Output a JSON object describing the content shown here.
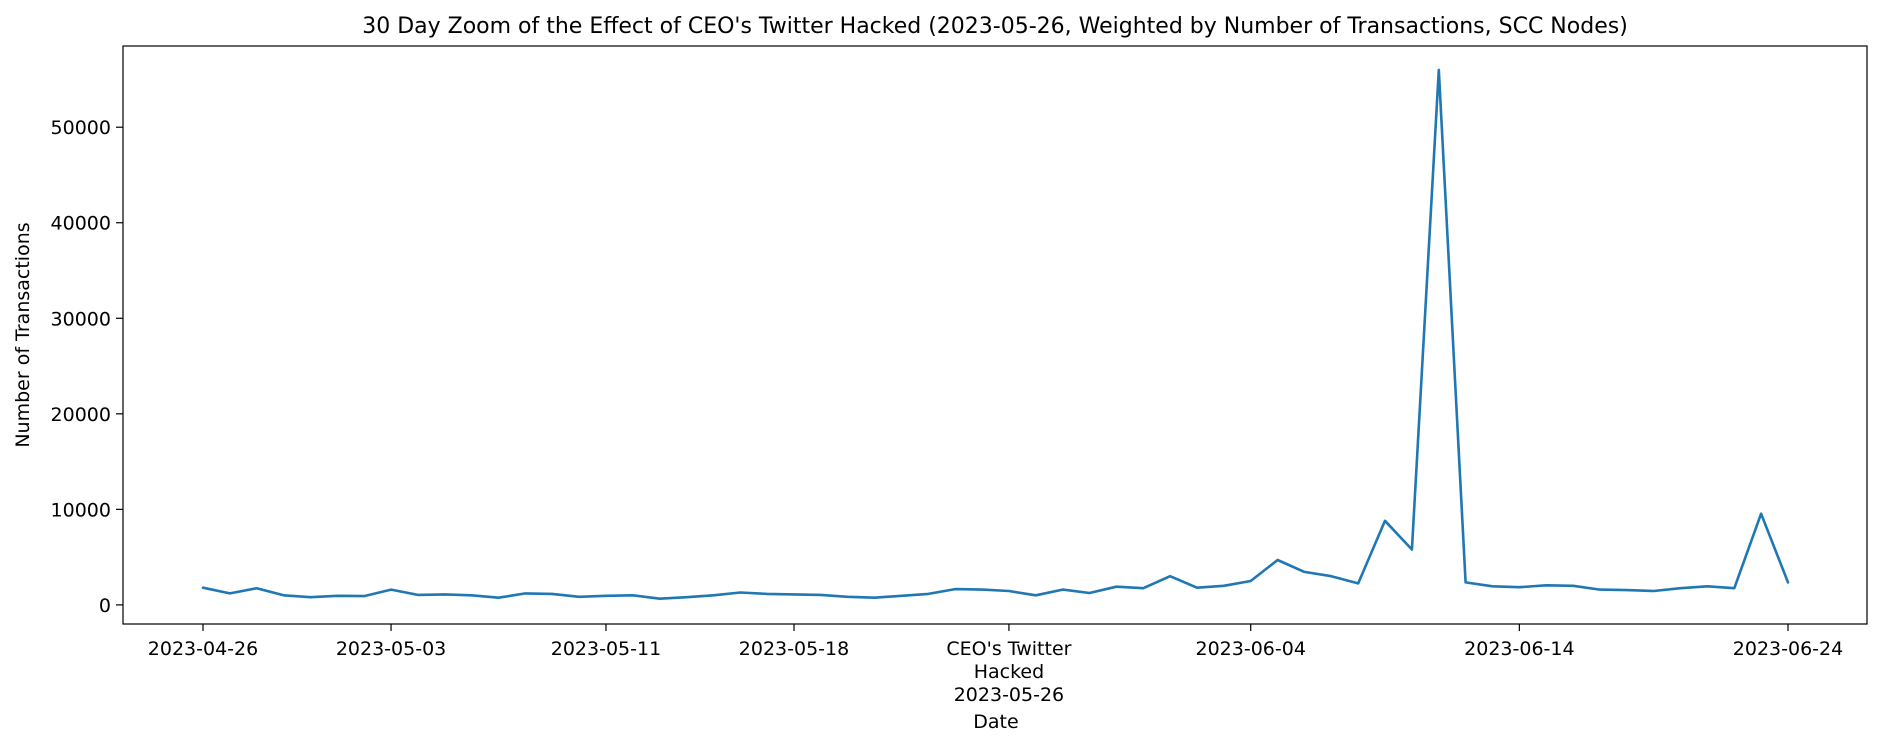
{
  "chart_data": {
    "type": "line",
    "title": "30 Day Zoom of the Effect of CEO's Twitter Hacked (2023-05-26, Weighted by Number of Transactions, SCC Nodes)",
    "xlabel": "Date",
    "ylabel": "Number of Transactions",
    "ylim": [
      -2000,
      58500
    ],
    "grid": false,
    "y_ticks": [
      0,
      10000,
      20000,
      30000,
      40000,
      50000
    ],
    "x_ticks": [
      {
        "date": "2023-04-26",
        "label": "2023-04-26"
      },
      {
        "date": "2023-05-03",
        "label": "2023-05-03"
      },
      {
        "date": "2023-05-11",
        "label": "2023-05-11"
      },
      {
        "date": "2023-05-18",
        "label": "2023-05-18"
      },
      {
        "date": "2023-05-26",
        "label": "CEO's Twitter\nHacked\n2023-05-26"
      },
      {
        "date": "2023-06-04",
        "label": "2023-06-04"
      },
      {
        "date": "2023-06-14",
        "label": "2023-06-14"
      },
      {
        "date": "2023-06-24",
        "label": "2023-06-24"
      }
    ],
    "series": [
      {
        "color": "#1f77b4",
        "x": [
          "2023-04-26",
          "2023-04-27",
          "2023-04-28",
          "2023-04-29",
          "2023-04-30",
          "2023-05-01",
          "2023-05-02",
          "2023-05-03",
          "2023-05-04",
          "2023-05-05",
          "2023-05-06",
          "2023-05-07",
          "2023-05-08",
          "2023-05-09",
          "2023-05-10",
          "2023-05-11",
          "2023-05-12",
          "2023-05-13",
          "2023-05-14",
          "2023-05-15",
          "2023-05-16",
          "2023-05-17",
          "2023-05-18",
          "2023-05-19",
          "2023-05-20",
          "2023-05-21",
          "2023-05-22",
          "2023-05-23",
          "2023-05-24",
          "2023-05-25",
          "2023-05-26",
          "2023-05-27",
          "2023-05-28",
          "2023-05-29",
          "2023-05-30",
          "2023-05-31",
          "2023-06-01",
          "2023-06-02",
          "2023-06-03",
          "2023-06-04",
          "2023-06-05",
          "2023-06-06",
          "2023-06-07",
          "2023-06-08",
          "2023-06-09",
          "2023-06-10",
          "2023-06-11",
          "2023-06-12",
          "2023-06-13",
          "2023-06-14",
          "2023-06-15",
          "2023-06-16",
          "2023-06-17",
          "2023-06-18",
          "2023-06-19",
          "2023-06-20",
          "2023-06-21",
          "2023-06-22",
          "2023-06-23",
          "2023-06-24"
        ],
        "values": [
          1800,
          1200,
          1750,
          1000,
          800,
          950,
          920,
          1600,
          1050,
          1100,
          1000,
          750,
          1200,
          1150,
          850,
          950,
          1000,
          650,
          800,
          1000,
          1300,
          1150,
          1100,
          1050,
          850,
          750,
          950,
          1150,
          1650,
          1600,
          1450,
          1000,
          1600,
          1250,
          1900,
          1750,
          3000,
          1800,
          2000,
          2500,
          4700,
          3450,
          3000,
          2250,
          8800,
          5800,
          56000,
          2350,
          1950,
          1850,
          2050,
          2000,
          1600,
          1550,
          1450,
          1750,
          1950,
          1750,
          9550,
          2350
        ]
      }
    ]
  }
}
